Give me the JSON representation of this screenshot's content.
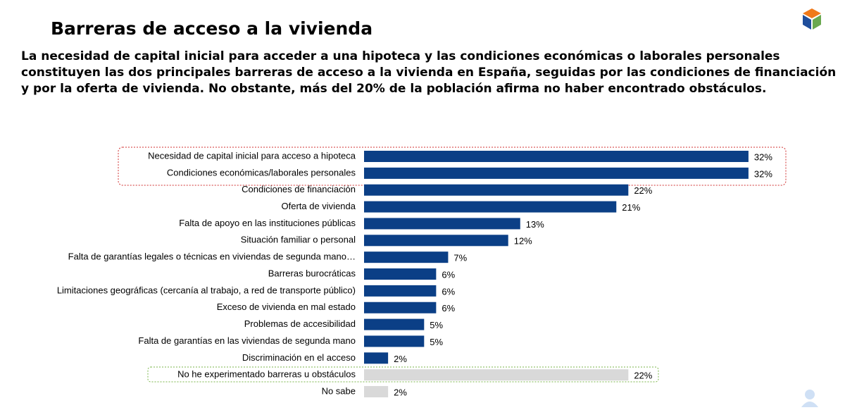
{
  "chart_data": {
    "type": "bar",
    "orientation": "horizontal",
    "title": "Barreras de acceso a la vivienda",
    "subtitle": [
      "La necesidad de capital inicial para acceder a una hipoteca y las condiciones económicas o laborales personales",
      "constituyen las dos principales barreras de acceso a la vivienda en España, seguidas por las condiciones de financiación",
      "y por la oferta de vivienda. No obstante, más del 20% de la población afirma no haber encontrado obstáculos."
    ],
    "categories": [
      "Necesidad de capital inicial para acceso a hipoteca",
      "Condiciones económicas/laborales personales",
      "Condiciones de financiación",
      "Oferta de vivienda",
      "Falta de apoyo en las instituciones públicas",
      "Situación familiar o personal",
      "Falta de garantías legales o técnicas en viviendas de segunda mano…",
      "Barreras burocráticas",
      "Limitaciones geográficas (cercanía al trabajo, a red de transporte público)",
      "Exceso de vivienda en mal estado",
      "Problemas de accesibilidad",
      "Falta de garantías en las viviendas de segunda mano",
      "Discriminación en el acceso",
      "No he experimentado barreras u obstáculos",
      "No sabe"
    ],
    "values": [
      32,
      32,
      22,
      21,
      13,
      12,
      7,
      6,
      6,
      6,
      5,
      5,
      2,
      22,
      2
    ],
    "value_labels": [
      "32%",
      "32%",
      "22%",
      "21%",
      "13%",
      "12%",
      "7%",
      "6%",
      "6%",
      "6%",
      "5%",
      "5%",
      "2%",
      "22%",
      "2%"
    ],
    "colors": [
      "#0b3f86",
      "#0b3f86",
      "#0b3f86",
      "#0b3f86",
      "#0b3f86",
      "#0b3f86",
      "#0b3f86",
      "#0b3f86",
      "#0b3f86",
      "#0b3f86",
      "#0b3f86",
      "#0b3f86",
      "#0b3f86",
      "#d9d9d9",
      "#d9d9d9"
    ]
  }
}
